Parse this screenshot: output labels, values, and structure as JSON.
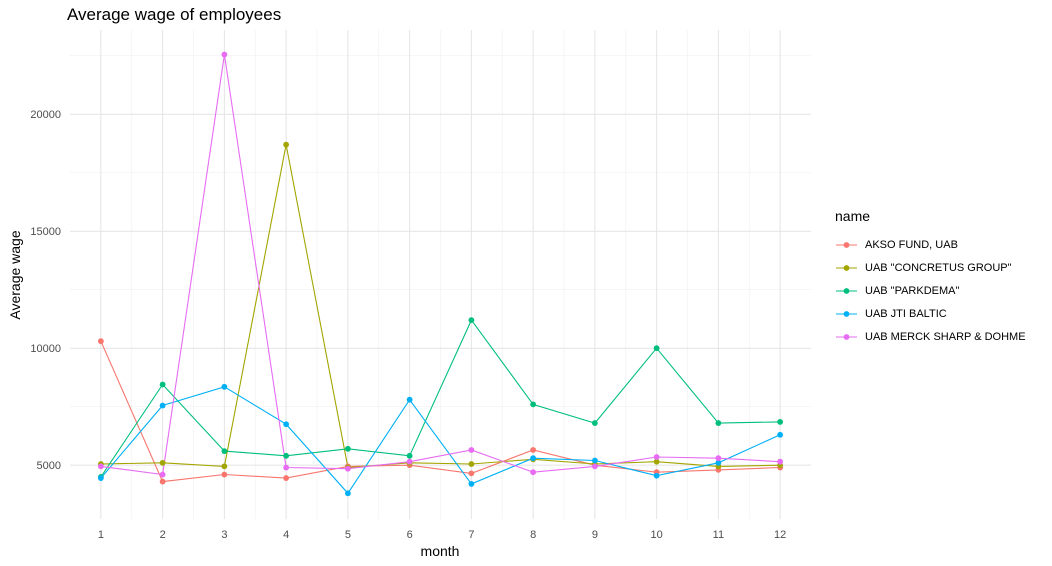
{
  "chart_data": {
    "type": "line",
    "title": "Average wage of employees",
    "xlabel": "month",
    "ylabel": "Average wage",
    "x": [
      1,
      2,
      3,
      4,
      5,
      6,
      7,
      8,
      9,
      10,
      11,
      12
    ],
    "xlim": [
      0.5,
      12.5
    ],
    "ylim": [
      2700,
      23600
    ],
    "yticks": [
      5000,
      10000,
      15000,
      20000
    ],
    "grid": true,
    "legend_title": "name",
    "legend_position": "right",
    "series": [
      {
        "name": "AKSO FUND, UAB",
        "color": "#F8766D",
        "values": [
          10300,
          4300,
          4600,
          4450,
          4950,
          5000,
          4650,
          5650,
          5000,
          4700,
          4800,
          4900
        ]
      },
      {
        "name": "UAB \"CONCRETUS GROUP\"",
        "color": "#A3A500",
        "values": [
          5050,
          5100,
          4950,
          18700,
          4900,
          5100,
          5050,
          5250,
          5050,
          5150,
          4950,
          5000
        ]
      },
      {
        "name": "UAB \"PARKDEMA\"",
        "color": "#00BF7D",
        "values": [
          4500,
          8450,
          5600,
          5400,
          5700,
          5400,
          11200,
          7600,
          6800,
          10000,
          6800,
          6850
        ]
      },
      {
        "name": "UAB JTI BALTIC",
        "color": "#00B0F6",
        "values": [
          4450,
          7550,
          8350,
          6750,
          3800,
          7800,
          4200,
          5300,
          5200,
          4550,
          5100,
          6300
        ]
      },
      {
        "name": "UAB MERCK SHARP & DOHME",
        "color": "#E76BF3",
        "values": [
          4950,
          4600,
          22550,
          4900,
          4850,
          5150,
          5650,
          4700,
          4950,
          5350,
          5300,
          5150
        ]
      }
    ]
  }
}
